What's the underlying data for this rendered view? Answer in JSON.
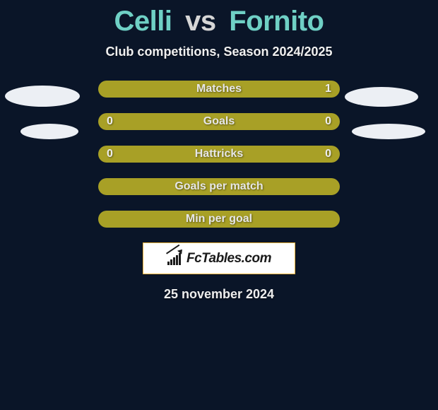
{
  "title": {
    "left": "Celli",
    "vs": "vs",
    "right": "Fornito",
    "left_color": "#6fd0c5",
    "right_color": "#6fd0c5"
  },
  "subtitle": "Club competitions, Season 2024/2025",
  "colors": {
    "background": "#0a1528",
    "pill_fill": "#a8a026",
    "badge_border": "#efb33a",
    "ellipse_fill": "#eceff4",
    "text_light": "#e6e6e6",
    "shadow": "rgba(0,0,0,0.45)"
  },
  "rows": [
    {
      "label": "Matches",
      "left": "",
      "right": "1"
    },
    {
      "label": "Goals",
      "left": "0",
      "right": "0"
    },
    {
      "label": "Hattricks",
      "left": "0",
      "right": "0"
    },
    {
      "label": "Goals per match",
      "left": "",
      "right": ""
    },
    {
      "label": "Min per goal",
      "left": "",
      "right": ""
    }
  ],
  "badge_text": "FcTables.com",
  "footer_date": "25 november 2024"
}
